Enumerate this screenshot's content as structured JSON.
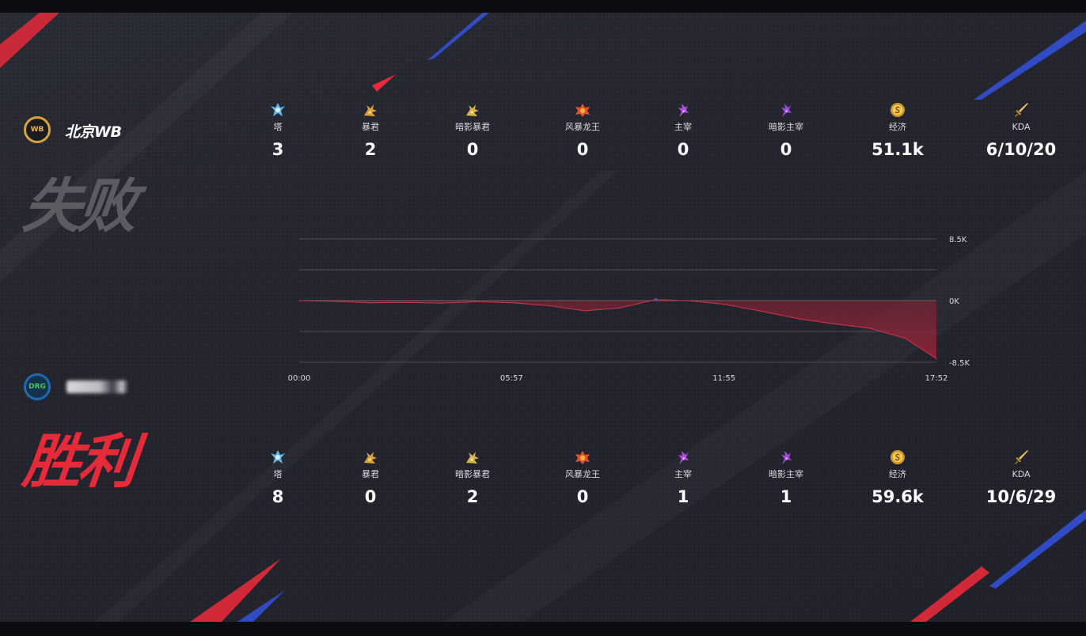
{
  "teams": {
    "top": {
      "name": "北京WB",
      "logo_text": "WB",
      "result": "失败"
    },
    "bottom": {
      "name": "",
      "logo_text": "DRG",
      "result": "胜利"
    }
  },
  "colors": {
    "loss": "#5b5c62",
    "win": "#e52a3a",
    "chart_fill": "#8b2436",
    "chart_line": "#c23044",
    "chart_blue": "#3b5bd6"
  },
  "stat_icons": [
    "tower-icon",
    "tyrant-icon",
    "shadow-tyrant-icon",
    "storm-dragon-icon",
    "overlord-icon",
    "shadow-overlord-icon",
    "gold-coin-icon",
    "sword-icon"
  ],
  "stats_top": [
    {
      "label": "塔",
      "value": "3"
    },
    {
      "label": "暴君",
      "value": "2"
    },
    {
      "label": "暗影暴君",
      "value": "0"
    },
    {
      "label": "风暴龙王",
      "value": "0"
    },
    {
      "label": "主宰",
      "value": "0"
    },
    {
      "label": "暗影主宰",
      "value": "0"
    },
    {
      "label": "经济",
      "value": "51.1k"
    },
    {
      "label": "KDA",
      "value": "6/10/20"
    }
  ],
  "stats_bottom": [
    {
      "label": "塔",
      "value": "8"
    },
    {
      "label": "暴君",
      "value": "0"
    },
    {
      "label": "暗影暴君",
      "value": "2"
    },
    {
      "label": "风暴龙王",
      "value": "0"
    },
    {
      "label": "主宰",
      "value": "1"
    },
    {
      "label": "暗影主宰",
      "value": "1"
    },
    {
      "label": "经济",
      "value": "59.6k"
    },
    {
      "label": "KDA",
      "value": "10/6/29"
    }
  ],
  "chart_data": {
    "type": "area",
    "y_tick_labels": [
      "8.5K",
      "0K",
      "-8.5K"
    ],
    "ylim": [
      -8500,
      8500
    ],
    "y_gridlines": [
      8500,
      4250,
      0,
      -4250,
      -8500
    ],
    "x_tick_labels": [
      "00:00",
      "05:57",
      "11:55",
      "17:52"
    ],
    "x_seconds": [
      0,
      60,
      120,
      180,
      240,
      300,
      360,
      420,
      480,
      540,
      600,
      660,
      715,
      780,
      840,
      900,
      960,
      1020,
      1072
    ],
    "gold_diff": [
      0,
      -100,
      -300,
      -250,
      -350,
      -150,
      -300,
      -700,
      -1400,
      -1000,
      150,
      -50,
      -500,
      -1500,
      -2500,
      -3200,
      -3800,
      -5200,
      -8000
    ],
    "xlim": [
      0,
      1072
    ]
  }
}
